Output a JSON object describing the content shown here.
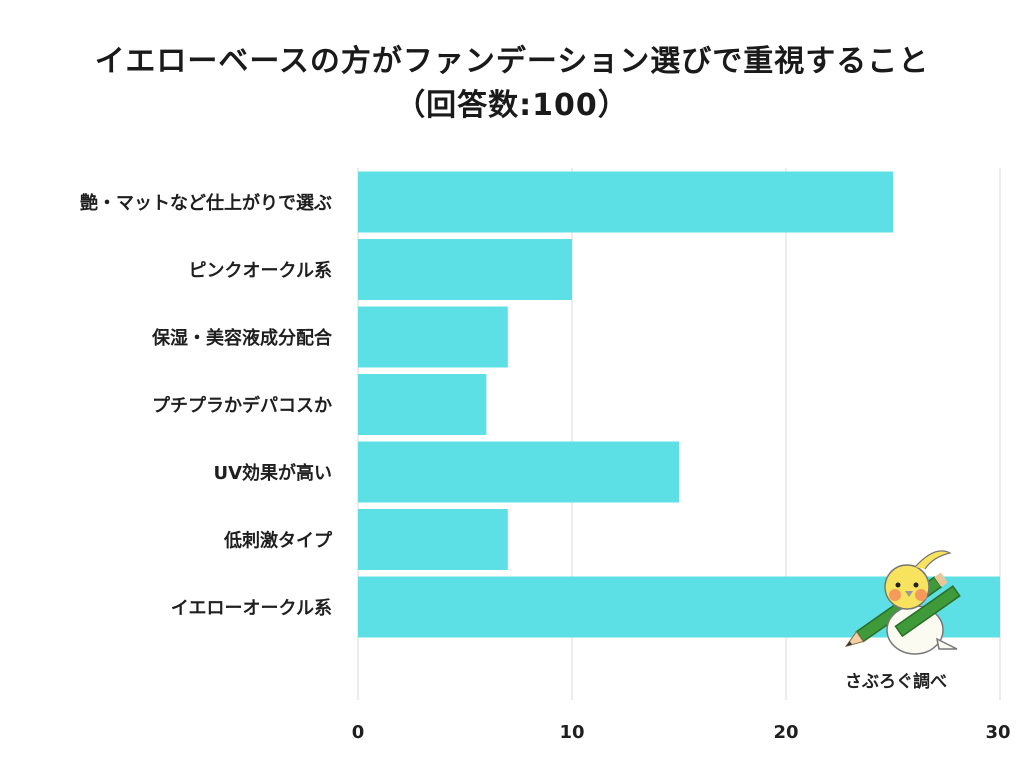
{
  "chart_data": {
    "type": "bar",
    "orientation": "horizontal",
    "title": "イエローベースの方がファンデーション選びで重視すること",
    "subtitle": "（回答数:100）",
    "categories": [
      "艶・マットなど仕上がりで選ぶ",
      "ピンクオークル系",
      "保湿・美容液成分配合",
      "プチプラかデパコスか",
      "UV効果が高い",
      "低刺激タイプ",
      "イエローオークル系"
    ],
    "values": [
      25,
      10,
      7,
      6,
      15,
      7,
      30
    ],
    "xlim": [
      0,
      30
    ],
    "xticks": [
      0,
      10,
      20,
      30
    ],
    "bar_color": "#5ce0e6",
    "grid": true,
    "xlabel": "",
    "ylabel": ""
  },
  "credit": "さぶろぐ調べ",
  "mascot_icon": "cockatiel-with-pencil-icon"
}
